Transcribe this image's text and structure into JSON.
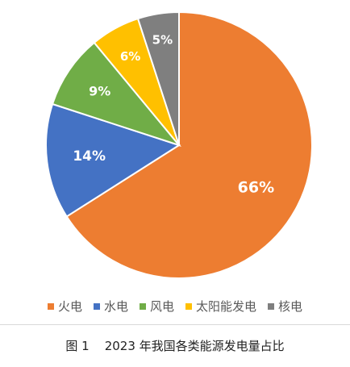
{
  "chart_data": {
    "type": "pie",
    "categories": [
      "火电",
      "水电",
      "风电",
      "太阳能发电",
      "核电"
    ],
    "values": [
      66,
      14,
      9,
      6,
      5
    ],
    "labels": [
      "66%",
      "14%",
      "9%",
      "6%",
      "5%"
    ],
    "colors": [
      "#ED7D31",
      "#4472C4",
      "#70AD47",
      "#FFC000",
      "#7F7F7F"
    ],
    "legend": [
      "火电",
      "水电",
      "风电",
      "太阳能发电",
      "核电"
    ],
    "legend_position": "bottom",
    "start": "12 o'clock",
    "direction": "clockwise"
  },
  "caption": {
    "figure_number": "图 1",
    "text": "2023 年我国各类能源发电量占比"
  }
}
